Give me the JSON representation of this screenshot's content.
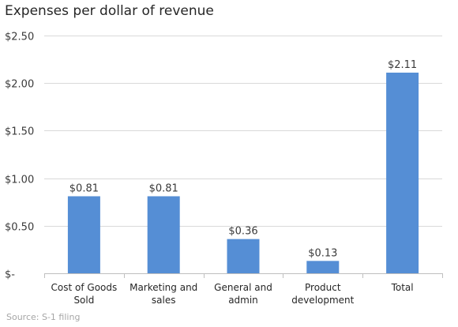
{
  "header": {
    "title": "Expenses per dollar of revenue"
  },
  "footer": {
    "source": "Source: S-1 filing"
  },
  "colors": {
    "bar": "#558ed5",
    "grid": "#d9d9d9",
    "axis": "#bfbfbf"
  },
  "chart_data": {
    "type": "bar",
    "title": "Expenses per dollar of revenue",
    "xlabel": "",
    "ylabel": "",
    "categories": [
      [
        "Cost of Goods",
        "Sold"
      ],
      [
        "Marketing and",
        "sales"
      ],
      [
        "General and",
        "admin"
      ],
      [
        "Product",
        "development"
      ],
      [
        "Total"
      ]
    ],
    "values": [
      0.81,
      0.81,
      0.36,
      0.13,
      2.11
    ],
    "data_labels": [
      "$0.81",
      "$0.81",
      "$0.36",
      "$0.13",
      "$2.11"
    ],
    "ylim": [
      0,
      2.5
    ],
    "y_ticks": [
      0,
      0.5,
      1.0,
      1.5,
      2.0,
      2.5
    ],
    "y_tick_labels": [
      "$-",
      "$0.50",
      "$1.00",
      "$1.50",
      "$2.00",
      "$2.50"
    ],
    "grid": true,
    "legend": "none"
  }
}
